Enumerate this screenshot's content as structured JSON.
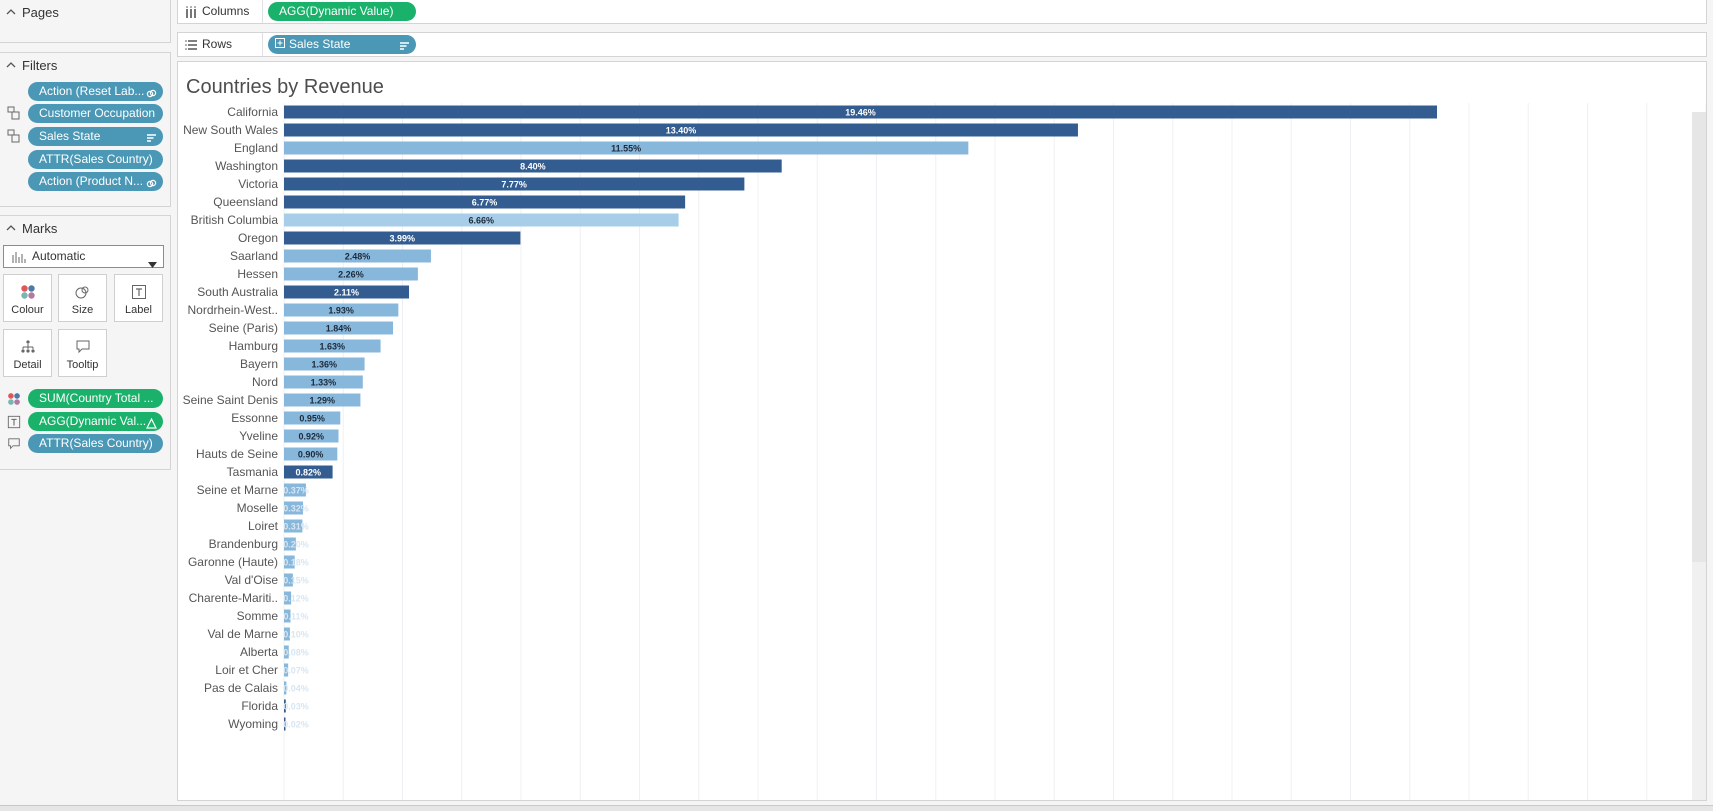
{
  "left_panel": {
    "pages": {
      "title": "Pages"
    },
    "filters": {
      "title": "Filters",
      "items": [
        {
          "label": "Action (Reset Lab...",
          "icon": "link-icon"
        },
        {
          "label": "Customer Occupation",
          "icon": ""
        },
        {
          "label": "Sales State",
          "icon": "sort-icon"
        },
        {
          "label": "ATTR(Sales Country)",
          "icon": ""
        },
        {
          "label": "Action (Product N...",
          "icon": "link-icon"
        }
      ]
    },
    "marks": {
      "title": "Marks",
      "type": "Automatic",
      "buttons": [
        {
          "label": "Colour",
          "icon": "colour-icon"
        },
        {
          "label": "Size",
          "icon": "size-icon"
        },
        {
          "label": "Label",
          "icon": "label-icon"
        },
        {
          "label": "Detail",
          "icon": "detail-icon"
        },
        {
          "label": "Tooltip",
          "icon": "tooltip-icon"
        }
      ],
      "pills": [
        {
          "label": "SUM(Country Total ...",
          "color": "green",
          "icon": "colour-icon"
        },
        {
          "label": "AGG(Dynamic Val...",
          "color": "green",
          "icon": "label-icon"
        },
        {
          "label": "ATTR(Sales Country)",
          "color": "blue",
          "icon": "tooltip-icon"
        }
      ]
    }
  },
  "shelves": {
    "columns": {
      "label": "Columns",
      "pill": "AGG(Dynamic Value)"
    },
    "rows": {
      "label": "Rows",
      "pill": "Sales State"
    }
  },
  "view": {
    "title": "Countries by Revenue"
  },
  "colors": {
    "dark": "#335d91",
    "light": "#88b7dc",
    "lighter": "#a7cde9",
    "pill_blue": "#4a98b6",
    "pill_green": "#1ab26b"
  },
  "chart_data": {
    "type": "bar",
    "orientation": "horizontal",
    "categories": [
      "California",
      "New South Wales",
      "England",
      "Washington",
      "Victoria",
      "Queensland",
      "British Columbia",
      "Oregon",
      "Saarland",
      "Hessen",
      "South Australia",
      "Nordrhein-West..",
      "Seine (Paris)",
      "Hamburg",
      "Bayern",
      "Nord",
      "Seine Saint Denis",
      "Essonne",
      "Yveline",
      "Hauts de Seine",
      "Tasmania",
      "Seine et Marne",
      "Moselle",
      "Loiret",
      "Brandenburg",
      "Garonne (Haute)",
      "Val d'Oise",
      "Charente-Mariti..",
      "Somme",
      "Val de Marne",
      "Alberta",
      "Loir et Cher",
      "Pas de Calais",
      "Florida",
      "Wyoming"
    ],
    "values": [
      19.46,
      13.4,
      11.55,
      8.4,
      7.77,
      6.77,
      6.66,
      3.99,
      2.48,
      2.26,
      2.11,
      1.93,
      1.84,
      1.63,
      1.36,
      1.33,
      1.29,
      0.95,
      0.92,
      0.9,
      0.82,
      0.37,
      0.32,
      0.31,
      0.2,
      0.18,
      0.15,
      0.12,
      0.11,
      0.1,
      0.08,
      0.07,
      0.04,
      0.03,
      0.02
    ],
    "labels": [
      "19.46%",
      "13.40%",
      "11.55%",
      "8.40%",
      "7.77%",
      "6.77%",
      "6.66%",
      "3.99%",
      "2.48%",
      "2.26%",
      "2.11%",
      "1.93%",
      "1.84%",
      "1.63%",
      "1.36%",
      "1.33%",
      "1.29%",
      "0.95%",
      "0.92%",
      "0.90%",
      "0.82%",
      "0.37%",
      "0.32%",
      "0.31%",
      "0.20%",
      "0.18%",
      "0.15%",
      "0.12%",
      "0.11%",
      "0.10%",
      "0.08%",
      "0.07%",
      "0.04%",
      "0.03%",
      "0.02%"
    ],
    "color_group": [
      "dark",
      "dark",
      "light",
      "dark",
      "dark",
      "dark",
      "lighter",
      "dark",
      "light",
      "light",
      "dark",
      "light",
      "light",
      "light",
      "light",
      "light",
      "light",
      "light",
      "light",
      "light",
      "dark",
      "light",
      "light",
      "light",
      "light",
      "light",
      "light",
      "light",
      "light",
      "light",
      "light",
      "light",
      "light",
      "dark",
      "dark"
    ],
    "xlim": [
      0,
      24
    ],
    "grid": true
  }
}
